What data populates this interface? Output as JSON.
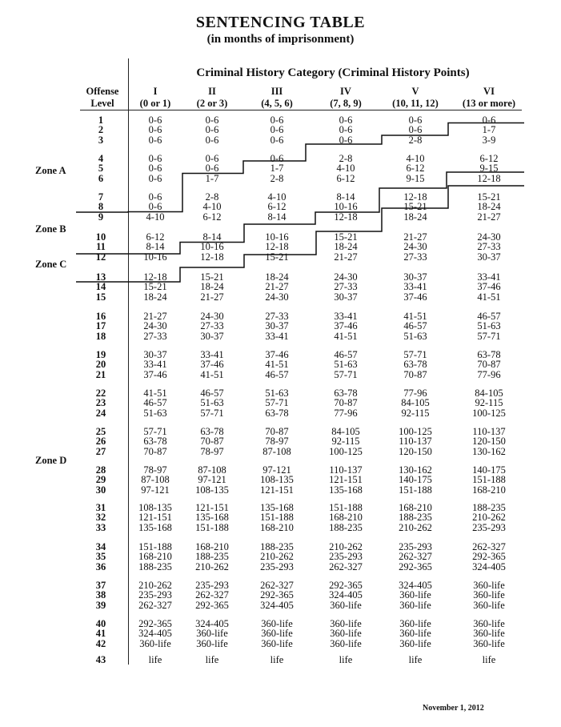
{
  "title": "SENTENCING TABLE",
  "subtitle": "(in months of imprisonment)",
  "category_header": "Criminal History Category (Criminal History Points)",
  "offense_header": [
    "Offense",
    "Level"
  ],
  "columns": [
    {
      "numeral": "I",
      "points": "(0 or 1)"
    },
    {
      "numeral": "II",
      "points": "(2 or 3)"
    },
    {
      "numeral": "III",
      "points": "(4, 5, 6)"
    },
    {
      "numeral": "IV",
      "points": "(7, 8, 9)"
    },
    {
      "numeral": "V",
      "points": "(10, 11, 12)"
    },
    {
      "numeral": "VI",
      "points": "(13 or more)"
    }
  ],
  "zones": [
    "Zone A",
    "Zone B",
    "Zone C",
    "Zone D"
  ],
  "rows": [
    [
      "1",
      "0-6",
      "0-6",
      "0-6",
      "0-6",
      "0-6",
      "0-6"
    ],
    [
      "2",
      "0-6",
      "0-6",
      "0-6",
      "0-6",
      "0-6",
      "1-7"
    ],
    [
      "3",
      "0-6",
      "0-6",
      "0-6",
      "0-6",
      "2-8",
      "3-9"
    ],
    [
      "4",
      "0-6",
      "0-6",
      "0-6",
      "2-8",
      "4-10",
      "6-12"
    ],
    [
      "5",
      "0-6",
      "0-6",
      "1-7",
      "4-10",
      "6-12",
      "9-15"
    ],
    [
      "6",
      "0-6",
      "1-7",
      "2-8",
      "6-12",
      "9-15",
      "12-18"
    ],
    [
      "7",
      "0-6",
      "2-8",
      "4-10",
      "8-14",
      "12-18",
      "15-21"
    ],
    [
      "8",
      "0-6",
      "4-10",
      "6-12",
      "10-16",
      "15-21",
      "18-24"
    ],
    [
      "9",
      "4-10",
      "6-12",
      "8-14",
      "12-18",
      "18-24",
      "21-27"
    ],
    [
      "10",
      "6-12",
      "8-14",
      "10-16",
      "15-21",
      "21-27",
      "24-30"
    ],
    [
      "11",
      "8-14",
      "10-16",
      "12-18",
      "18-24",
      "24-30",
      "27-33"
    ],
    [
      "12",
      "10-16",
      "12-18",
      "15-21",
      "21-27",
      "27-33",
      "30-37"
    ],
    [
      "13",
      "12-18",
      "15-21",
      "18-24",
      "24-30",
      "30-37",
      "33-41"
    ],
    [
      "14",
      "15-21",
      "18-24",
      "21-27",
      "27-33",
      "33-41",
      "37-46"
    ],
    [
      "15",
      "18-24",
      "21-27",
      "24-30",
      "30-37",
      "37-46",
      "41-51"
    ],
    [
      "16",
      "21-27",
      "24-30",
      "27-33",
      "33-41",
      "41-51",
      "46-57"
    ],
    [
      "17",
      "24-30",
      "27-33",
      "30-37",
      "37-46",
      "46-57",
      "51-63"
    ],
    [
      "18",
      "27-33",
      "30-37",
      "33-41",
      "41-51",
      "51-63",
      "57-71"
    ],
    [
      "19",
      "30-37",
      "33-41",
      "37-46",
      "46-57",
      "57-71",
      "63-78"
    ],
    [
      "20",
      "33-41",
      "37-46",
      "41-51",
      "51-63",
      "63-78",
      "70-87"
    ],
    [
      "21",
      "37-46",
      "41-51",
      "46-57",
      "57-71",
      "70-87",
      "77-96"
    ],
    [
      "22",
      "41-51",
      "46-57",
      "51-63",
      "63-78",
      "77-96",
      "84-105"
    ],
    [
      "23",
      "46-57",
      "51-63",
      "57-71",
      "70-87",
      "84-105",
      "92-115"
    ],
    [
      "24",
      "51-63",
      "57-71",
      "63-78",
      "77-96",
      "92-115",
      "100-125"
    ],
    [
      "25",
      "57-71",
      "63-78",
      "70-87",
      "84-105",
      "100-125",
      "110-137"
    ],
    [
      "26",
      "63-78",
      "70-87",
      "78-97",
      "92-115",
      "110-137",
      "120-150"
    ],
    [
      "27",
      "70-87",
      "78-97",
      "87-108",
      "100-125",
      "120-150",
      "130-162"
    ],
    [
      "28",
      "78-97",
      "87-108",
      "97-121",
      "110-137",
      "130-162",
      "140-175"
    ],
    [
      "29",
      "87-108",
      "97-121",
      "108-135",
      "121-151",
      "140-175",
      "151-188"
    ],
    [
      "30",
      "97-121",
      "108-135",
      "121-151",
      "135-168",
      "151-188",
      "168-210"
    ],
    [
      "31",
      "108-135",
      "121-151",
      "135-168",
      "151-188",
      "168-210",
      "188-235"
    ],
    [
      "32",
      "121-151",
      "135-168",
      "151-188",
      "168-210",
      "188-235",
      "210-262"
    ],
    [
      "33",
      "135-168",
      "151-188",
      "168-210",
      "188-235",
      "210-262",
      "235-293"
    ],
    [
      "34",
      "151-188",
      "168-210",
      "188-235",
      "210-262",
      "235-293",
      "262-327"
    ],
    [
      "35",
      "168-210",
      "188-235",
      "210-262",
      "235-293",
      "262-327",
      "292-365"
    ],
    [
      "36",
      "188-235",
      "210-262",
      "235-293",
      "262-327",
      "292-365",
      "324-405"
    ],
    [
      "37",
      "210-262",
      "235-293",
      "262-327",
      "292-365",
      "324-405",
      "360-life"
    ],
    [
      "38",
      "235-293",
      "262-327",
      "292-365",
      "324-405",
      "360-life",
      "360-life"
    ],
    [
      "39",
      "262-327",
      "292-365",
      "324-405",
      "360-life",
      "360-life",
      "360-life"
    ],
    [
      "40",
      "292-365",
      "324-405",
      "360-life",
      "360-life",
      "360-life",
      "360-life"
    ],
    [
      "41",
      "324-405",
      "360-life",
      "360-life",
      "360-life",
      "360-life",
      "360-life"
    ],
    [
      "42",
      "360-life",
      "360-life",
      "360-life",
      "360-life",
      "360-life",
      "360-life"
    ],
    [
      "43",
      "life",
      "life",
      "life",
      "life",
      "life",
      "life"
    ]
  ],
  "footer": "November 1, 2012"
}
